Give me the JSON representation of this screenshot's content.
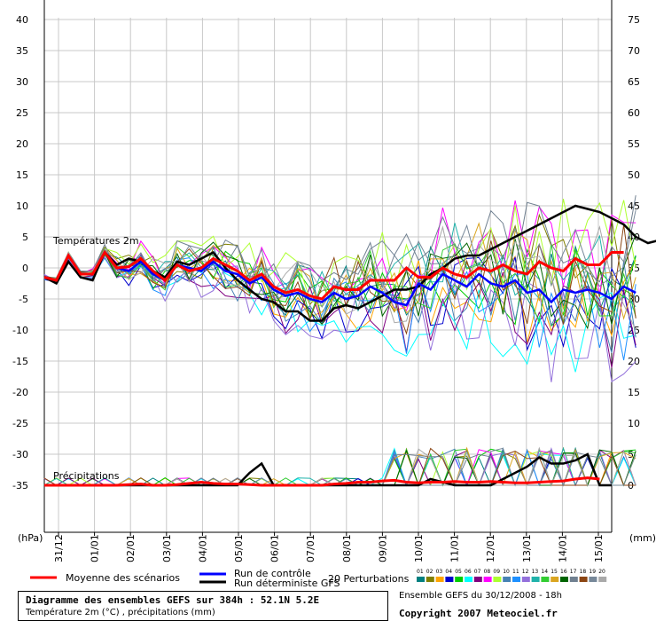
{
  "chart_data": {
    "type": "line",
    "title": "Diagramme des ensembles GEFS sur 384h : 52.1N 5.2E",
    "subtitle": "Température 2m (°C) , précipitations (mm)",
    "y_left_ticks": [
      "40",
      "35",
      "30",
      "25",
      "20",
      "15",
      "10",
      "5",
      "0",
      "-5",
      "-10",
      "-15",
      "-20",
      "-25",
      "-30",
      "-35"
    ],
    "y_right_ticks": [
      "75",
      "70",
      "65",
      "60",
      "55",
      "50",
      "45",
      "40",
      "35",
      "30",
      "25",
      "20",
      "15",
      "10",
      "5",
      "0"
    ],
    "left_unit": "(hPa)",
    "right_unit": "(mm)",
    "x_ticks": [
      "31/12",
      "01/01",
      "02/01",
      "03/01",
      "04/01",
      "05/01",
      "06/01",
      "07/01",
      "08/01",
      "09/01",
      "10/01",
      "11/01",
      "12/01",
      "13/01",
      "14/01",
      "15/01"
    ],
    "section_labels": {
      "temperature": "Températures 2m",
      "precipitation": "Précipitations"
    },
    "temperature_series": [
      {
        "name": "Moyenne des scénarios",
        "color": "#ff0000",
        "values": [
          -1.5,
          -2,
          2,
          -1,
          -1,
          2.5,
          0,
          0.2,
          1.5,
          -0.5,
          -2,
          0.5,
          -0.5,
          0,
          1.5,
          0.5,
          -0.5,
          -2,
          -1,
          -3,
          -4,
          -3.5,
          -4.5,
          -5,
          -3,
          -3.5,
          -3.5,
          -2,
          -2,
          -2,
          0,
          -1.5,
          -1.5,
          0,
          -1,
          -1.5,
          0,
          -0.5,
          0.5,
          -0.5,
          -1,
          1,
          0,
          -0.5,
          1.5,
          0.5,
          0.5,
          2.5,
          2.5
        ]
      },
      {
        "name": "Run de contrôle",
        "color": "#0000ff",
        "values": [
          -1.5,
          -2,
          2,
          -1,
          -1,
          2.5,
          0,
          -0.5,
          1,
          -1,
          -2,
          0.5,
          0,
          -0.5,
          1,
          -0.5,
          -1,
          -2.5,
          -1.5,
          -3.5,
          -4.5,
          -4,
          -5,
          -5.5,
          -4,
          -5,
          -4.5,
          -3,
          -4,
          -5.5,
          -6,
          -2.5,
          -3.5,
          -1,
          -2,
          -3,
          -1,
          -2.5,
          -3,
          -2,
          -4,
          -3.5,
          -5.5,
          -3.5,
          -4,
          -3.5,
          -4,
          -5,
          -3,
          -4
        ]
      },
      {
        "name": "Run déterministe GFS",
        "color": "#000000",
        "values": [
          -1.5,
          -2.5,
          1,
          -1.5,
          -2,
          2.5,
          0.5,
          1.5,
          1,
          -0.5,
          -1.5,
          1,
          0.5,
          1.5,
          2.5,
          0,
          -2,
          -3.5,
          -5,
          -5.5,
          -7,
          -7,
          -8.5,
          -8.5,
          -6.5,
          -6,
          -6.5,
          -5.5,
          -4.5,
          -3.5,
          -3.5,
          -3,
          -1,
          0,
          1.5,
          2,
          2,
          3,
          4,
          5,
          6,
          7,
          8,
          9,
          10,
          9.5,
          9,
          8,
          7,
          5,
          4,
          4.5
        ]
      }
    ],
    "precipitation_series": [
      {
        "name": "Moyenne des scénarios",
        "color": "#ff0000",
        "values": [
          0,
          0,
          0,
          0,
          0,
          0,
          0,
          0.1,
          0.2,
          0,
          0,
          0.1,
          0.3,
          0.5,
          0.3,
          0.2,
          0.2,
          0.1,
          0,
          0,
          0,
          0,
          0,
          0,
          0.2,
          0.3,
          0.5,
          0.5,
          0.7,
          0.8,
          0.5,
          0.4,
          0.5,
          0.5,
          0.6,
          0.5,
          0.5,
          0.6,
          0.5,
          0.4,
          0.4,
          0.5,
          0.6,
          0.7,
          1,
          1.2,
          1
        ]
      },
      {
        "name": "Run déterministe GFS",
        "color": "#000000",
        "values": [
          0,
          0,
          0,
          0,
          0,
          0,
          0,
          0,
          0,
          0,
          0,
          0,
          0,
          0,
          0,
          0,
          0,
          2,
          3.5,
          0,
          0,
          0,
          0,
          0,
          0,
          0,
          0,
          0,
          0,
          0,
          0,
          0,
          1,
          0.5,
          0,
          0,
          0,
          0,
          1,
          2,
          3,
          4.5,
          3.5,
          3.5,
          4,
          5,
          0,
          0
        ]
      }
    ],
    "perturbation_count": 20,
    "perturbation_colors": [
      "#008080",
      "#808000",
      "#ffa500",
      "#0000cd",
      "#00cd00",
      "#00ffff",
      "#800080",
      "#ff00ff",
      "#adff2f",
      "#4682b4",
      "#1e90ff",
      "#9370db",
      "#20b2aa",
      "#32cd32",
      "#daa520",
      "#006400",
      "#708090",
      "#8b4513",
      "#778899",
      "#a9a9a9"
    ],
    "perturbation_labels": [
      "01",
      "02",
      "03",
      "04",
      "05",
      "06",
      "07",
      "08",
      "09",
      "10",
      "11",
      "12",
      "13",
      "14",
      "15",
      "16",
      "17",
      "18",
      "19",
      "20"
    ]
  },
  "legend": {
    "mean_label": "Moyenne des scénarios",
    "control_label": "Run de contrôle",
    "det_label": "Run déterministe GFS",
    "perturb_label": "20 Perturbations"
  },
  "footer": {
    "title": "Diagramme des ensembles GEFS sur 384h : 52.1N 5.2E",
    "subtitle": "Température 2m (°C) , précipitations (mm)",
    "ensemble_date": "Ensemble GEFS du 30/12/2008 - 18h",
    "copyright": "Copyright 2007 Meteociel.fr"
  }
}
